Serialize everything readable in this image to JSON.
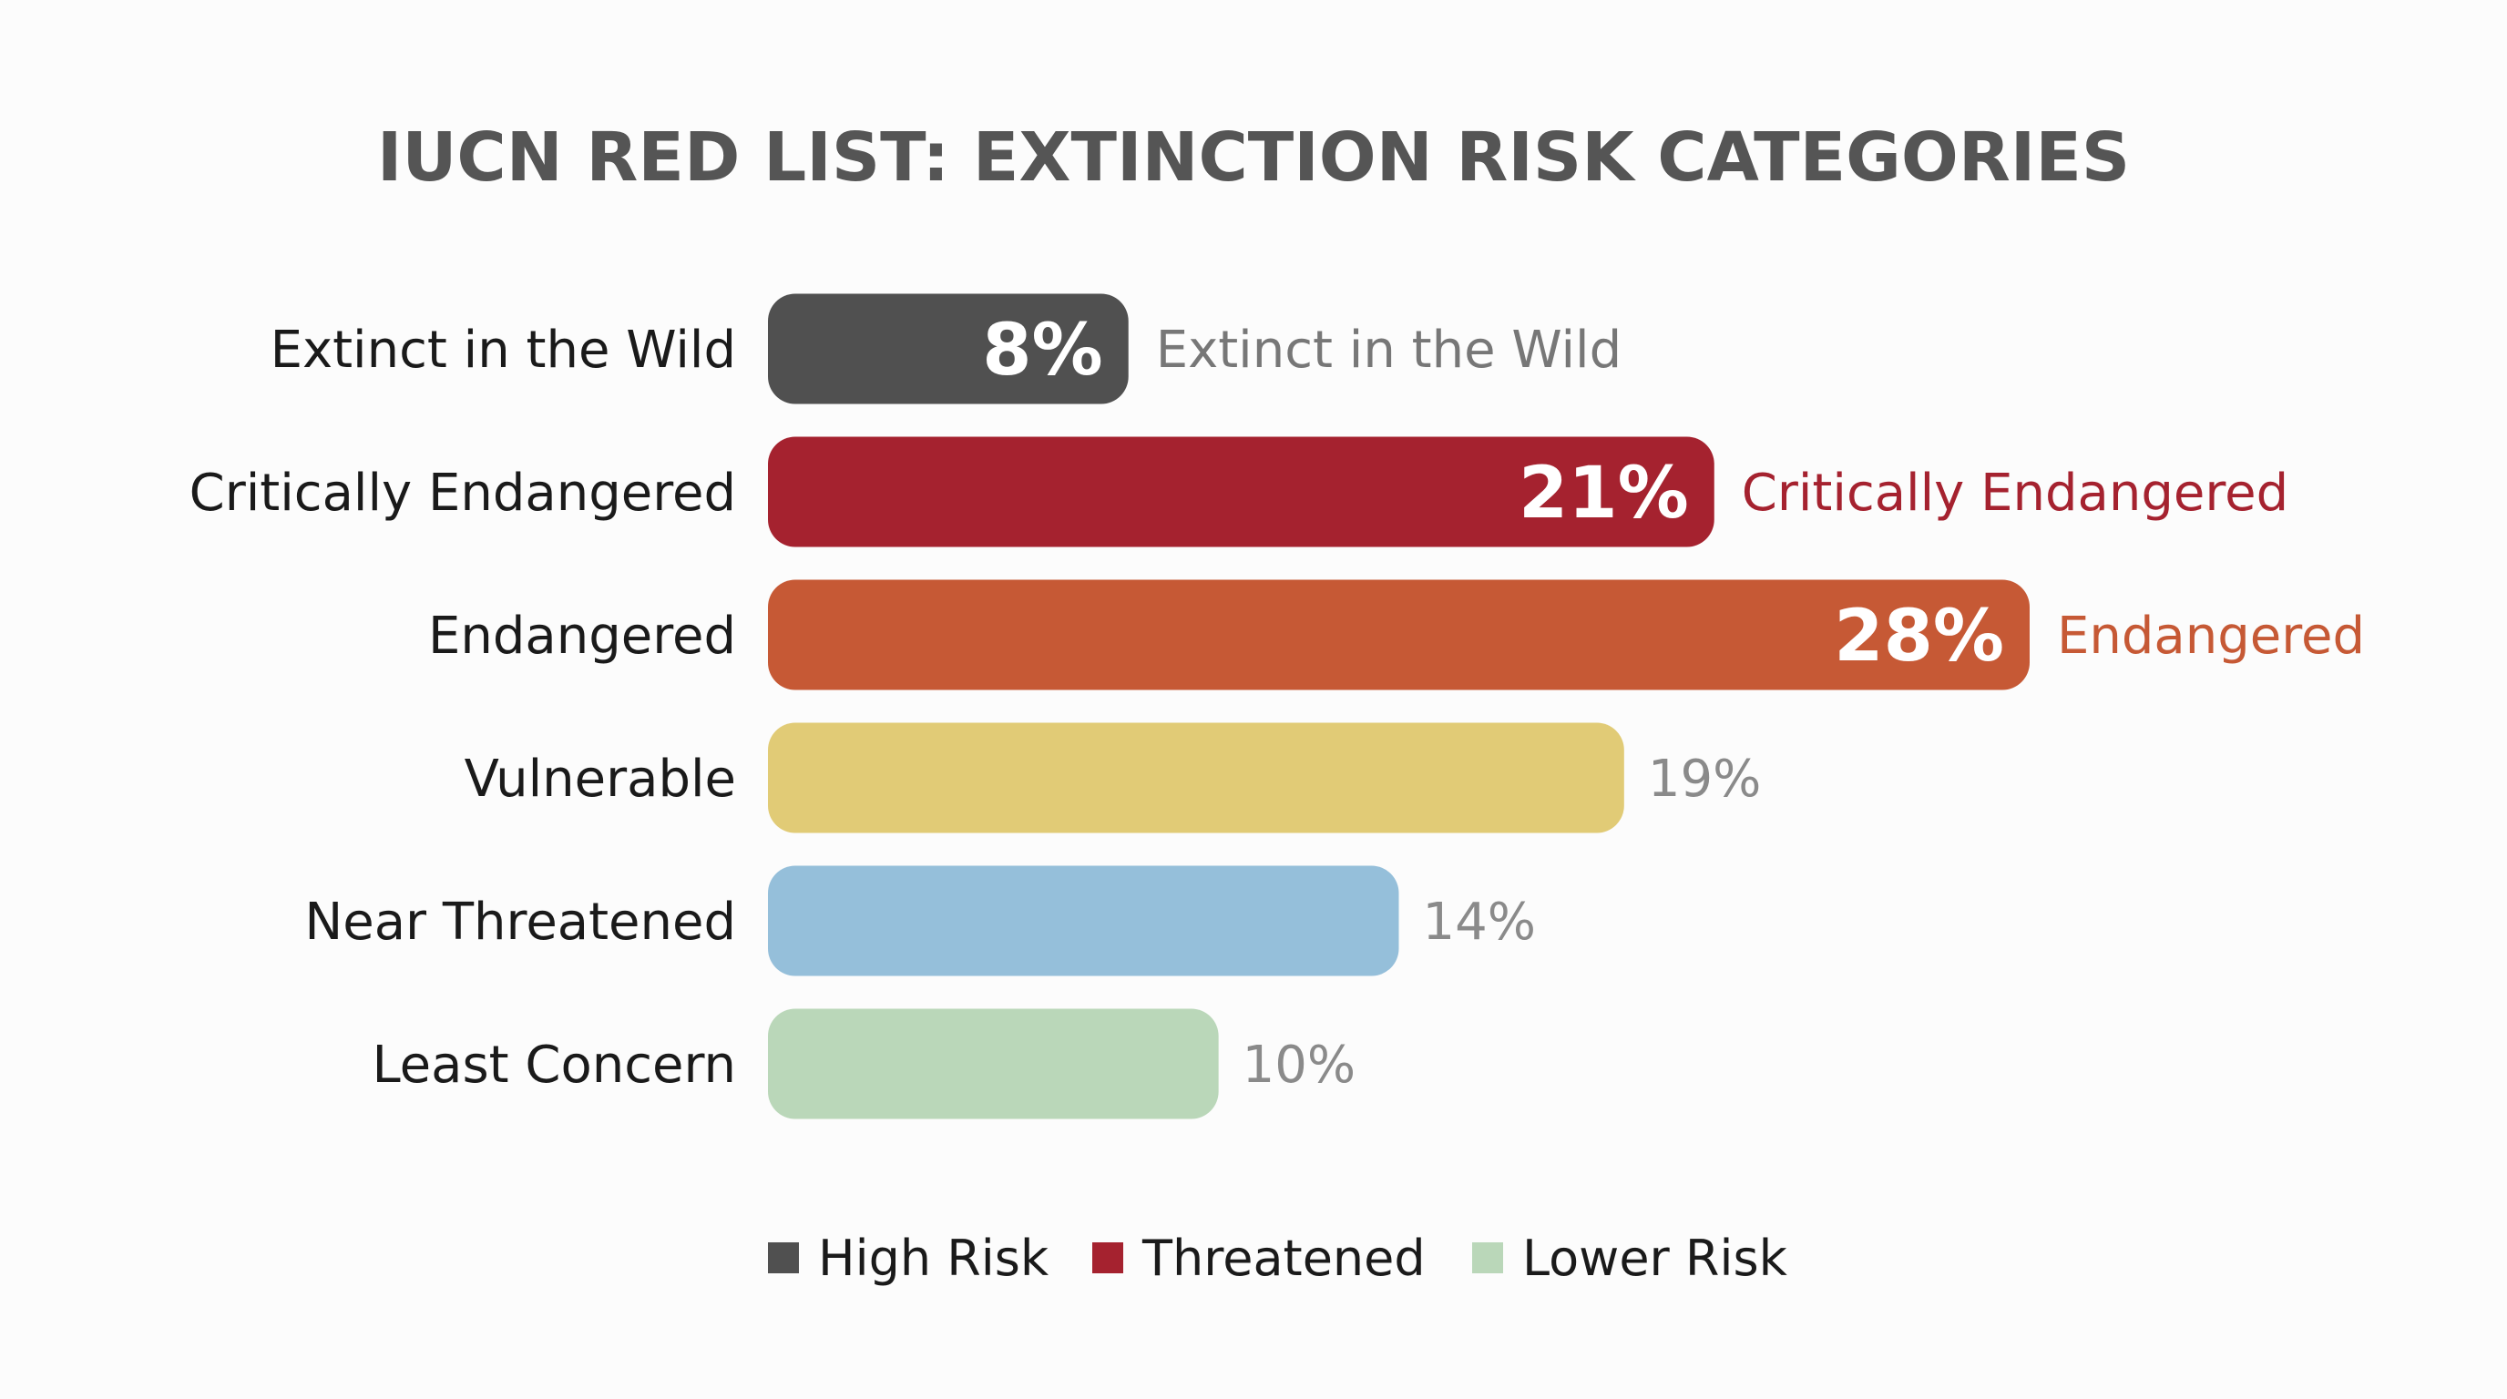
{
  "chart_data": {
    "type": "bar",
    "orientation": "horizontal",
    "title": "IUCN RED LIST: EXTINCTION RISK CATEGORIES",
    "categories": [
      "Extinct in the Wild",
      "Critically Endangered",
      "Endangered",
      "Vulnerable",
      "Near Threatened",
      "Least Concern"
    ],
    "values": [
      8,
      21,
      28,
      19,
      14,
      10
    ],
    "value_labels": [
      "8%",
      "21%",
      "28%",
      "19%",
      "14%",
      "10%"
    ],
    "annotations": [
      "Extinct in the Wild",
      "Critically Endangered",
      "Endangered",
      "",
      "",
      ""
    ],
    "label_inside": [
      true,
      true,
      true,
      false,
      false,
      false
    ],
    "colors": [
      "#505050",
      "#a5222f",
      "#c65935",
      "#e1cb76",
      "#95bfda",
      "#bad7b9"
    ],
    "annotation_colors": [
      "#777777",
      "#a5222f",
      "#c65935",
      "",
      "",
      ""
    ],
    "xlim": [
      0,
      28
    ],
    "grid": false,
    "legend_position": "bottom-center",
    "legend": [
      {
        "label": "High Risk",
        "color": "#505050"
      },
      {
        "label": "Threatened",
        "color": "#a5222f"
      },
      {
        "label": "Lower Risk",
        "color": "#bad7b9"
      }
    ]
  }
}
